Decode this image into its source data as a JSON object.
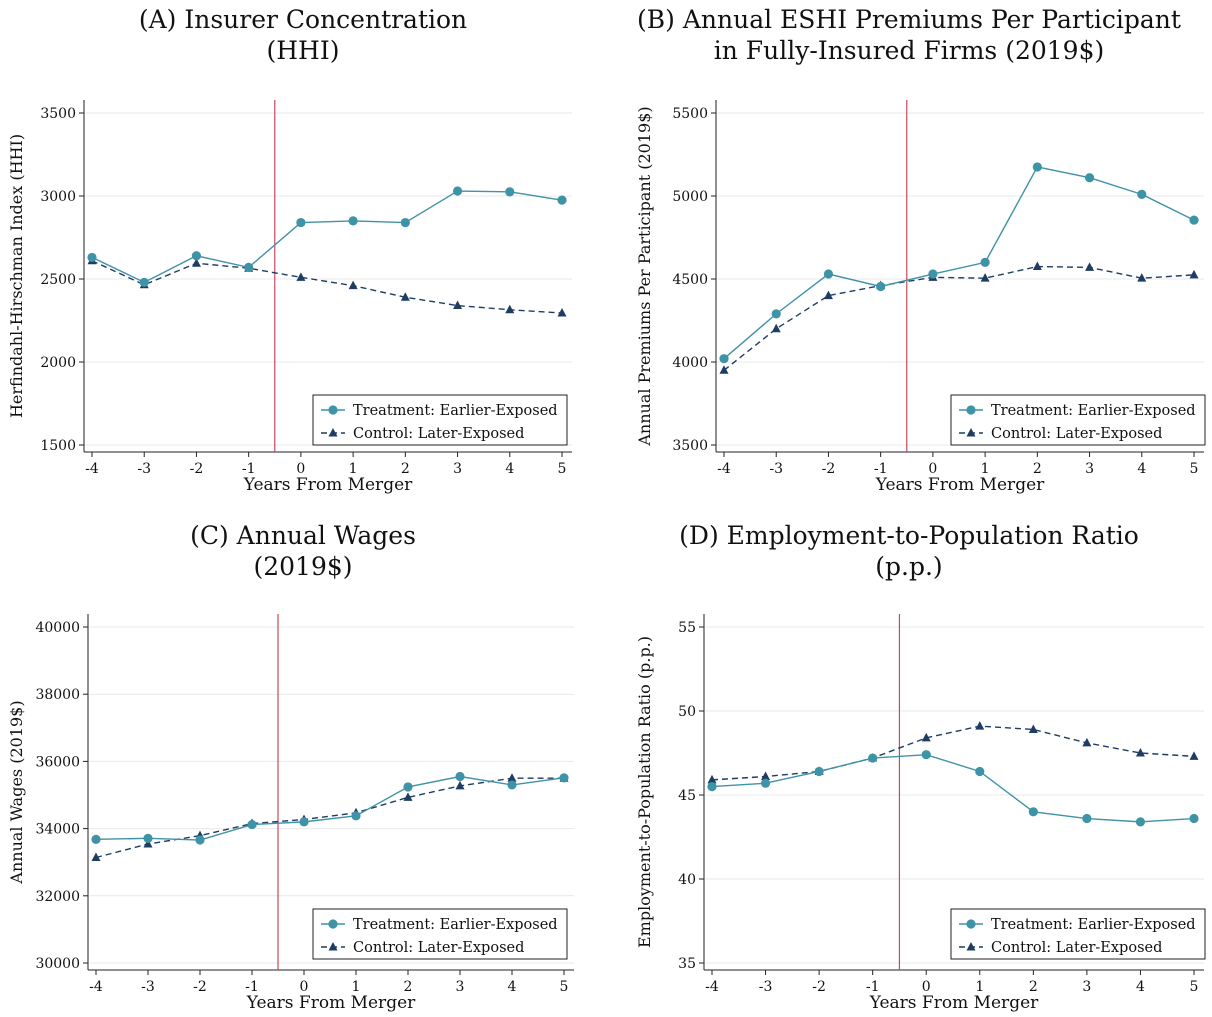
{
  "chart_data": [
    {
      "type": "line",
      "panel": "A",
      "title": [
        "(A) Insurer Concentration",
        "(HHI)"
      ],
      "xlabel": "Years From Merger",
      "ylabel": "Herfindahl-Hirschman Index (HHI)",
      "x": [
        -4,
        -3,
        -2,
        -1,
        0,
        1,
        2,
        3,
        4,
        5
      ],
      "xlim": [
        -4,
        5
      ],
      "ylim": [
        1500,
        3500
      ],
      "yticks": [
        1500,
        2000,
        2500,
        3000,
        3500
      ],
      "event_line_x": -0.5,
      "series": [
        {
          "name": "Treatment: Earlier-Exposed",
          "marker": "circle",
          "style": "solid",
          "values": [
            2630,
            2480,
            2640,
            2570,
            2840,
            2850,
            2840,
            3030,
            3025,
            2975
          ]
        },
        {
          "name": "Control: Later-Exposed",
          "marker": "triangle",
          "style": "dashed",
          "values": [
            2610,
            2465,
            2595,
            2565,
            2510,
            2460,
            2390,
            2340,
            2315,
            2295
          ]
        }
      ],
      "legend_position": "bottom-right"
    },
    {
      "type": "line",
      "panel": "B",
      "title": [
        "(B) Annual ESHI Premiums Per Participant",
        "in Fully-Insured Firms (2019$)"
      ],
      "xlabel": "Years From Merger",
      "ylabel": "Annual Premiums Per Participant (2019$)",
      "x": [
        -4,
        -3,
        -2,
        -1,
        0,
        1,
        2,
        3,
        4,
        5
      ],
      "xlim": [
        -4,
        5
      ],
      "ylim": [
        3500,
        5500
      ],
      "yticks": [
        3500,
        4000,
        4500,
        5000,
        5500
      ],
      "event_line_x": -0.5,
      "series": [
        {
          "name": "Treatment: Earlier-Exposed",
          "marker": "circle",
          "style": "solid",
          "values": [
            4020,
            4290,
            4530,
            4455,
            4530,
            4600,
            5175,
            5110,
            5010,
            4855
          ]
        },
        {
          "name": "Control: Later-Exposed",
          "marker": "triangle",
          "style": "dashed",
          "values": [
            3950,
            4200,
            4400,
            4460,
            4510,
            4505,
            4575,
            4570,
            4505,
            4525
          ]
        }
      ],
      "legend_position": "bottom-right"
    },
    {
      "type": "line",
      "panel": "C",
      "title": [
        "(C) Annual Wages",
        "(2019$)"
      ],
      "xlabel": "Years From Merger",
      "ylabel": "Annual Wages (2019$)",
      "x": [
        -4,
        -3,
        -2,
        -1,
        0,
        1,
        2,
        3,
        4,
        5
      ],
      "xlim": [
        -4,
        5
      ],
      "ylim": [
        30000,
        40000
      ],
      "yticks": [
        30000,
        32000,
        34000,
        36000,
        38000,
        40000
      ],
      "event_line_x": -0.5,
      "series": [
        {
          "name": "Treatment: Earlier-Exposed",
          "marker": "circle",
          "style": "solid",
          "values": [
            33680,
            33710,
            33660,
            34120,
            34200,
            34380,
            35240,
            35550,
            35300,
            35510
          ]
        },
        {
          "name": "Control: Later-Exposed",
          "marker": "triangle",
          "style": "dashed",
          "values": [
            33140,
            33540,
            33790,
            34150,
            34270,
            34470,
            34930,
            35270,
            35500,
            35500
          ]
        }
      ],
      "legend_position": "bottom-right"
    },
    {
      "type": "line",
      "panel": "D",
      "title": [
        "(D) Employment-to-Population Ratio",
        "(p.p.)"
      ],
      "xlabel": "Years From Merger",
      "ylabel": "Employment-to-Population Ratio (p.p.)",
      "x": [
        -4,
        -3,
        -2,
        -1,
        0,
        1,
        2,
        3,
        4,
        5
      ],
      "xlim": [
        -4,
        5
      ],
      "ylim": [
        35,
        55
      ],
      "yticks": [
        35,
        40,
        45,
        50,
        55
      ],
      "event_line_x": -0.5,
      "series": [
        {
          "name": "Treatment: Earlier-Exposed",
          "marker": "circle",
          "style": "solid",
          "values": [
            45.5,
            45.7,
            46.4,
            47.2,
            47.4,
            46.4,
            44.0,
            43.6,
            43.4,
            43.6
          ]
        },
        {
          "name": "Control: Later-Exposed",
          "marker": "triangle",
          "style": "dashed",
          "values": [
            45.9,
            46.1,
            46.4,
            47.2,
            48.4,
            49.1,
            48.9,
            48.1,
            47.5,
            47.3
          ]
        }
      ],
      "legend_position": "bottom-right"
    }
  ],
  "colors": {
    "treatment": "#3f93a6",
    "control": "#1f3d63",
    "event_line": "#c8475a",
    "grid": "#e9e9e9",
    "axis": "#222222"
  }
}
